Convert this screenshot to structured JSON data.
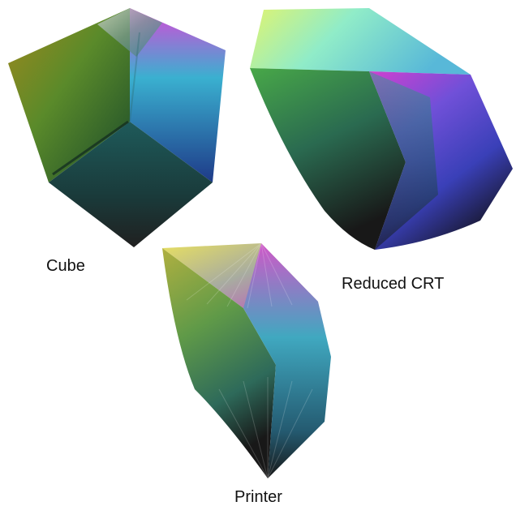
{
  "figure": {
    "panels": [
      {
        "id": "cube",
        "caption": "Cube",
        "colors": {
          "top": "#d8dcd6",
          "left_top": "#a08a1a",
          "right_top": "#e040d8",
          "mid_left": "#4a8a2c",
          "mid_right": "#28b0c8",
          "center": "#1e5a5a",
          "bottom_left": "#1e6a3a",
          "bottom_right": "#1e4a8a",
          "bottom": "#202020"
        }
      },
      {
        "id": "reduced-crt",
        "caption": "Reduced CRT",
        "colors": {
          "top_left": "#d8f07a",
          "top_face": "#88e8c0",
          "top_right": "#60c8e0",
          "right": "#d040d0",
          "right_low": "#4848e0",
          "left": "#40a040",
          "center": "#2a6a5a",
          "bottom": "#181818"
        }
      },
      {
        "id": "printer",
        "caption": "Printer",
        "colors": {
          "top_left": "#e8e060",
          "top": "#a0a8a0",
          "right_top": "#d050c8",
          "right": "#3aa8b8",
          "left": "#6a9a40",
          "mid": "#2e6a60",
          "bottom": "#181818"
        }
      }
    ]
  }
}
